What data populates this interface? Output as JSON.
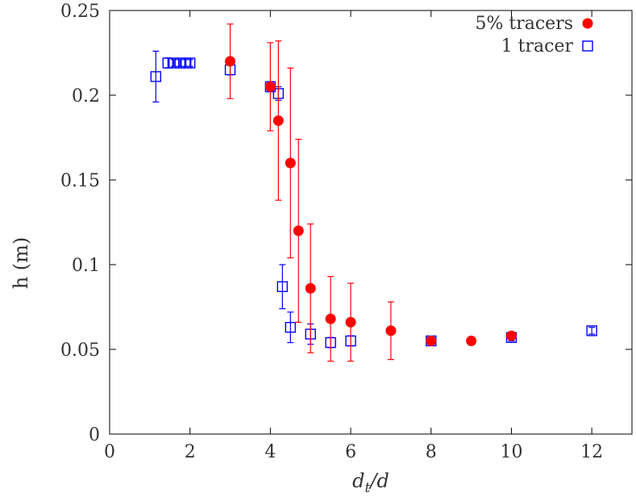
{
  "chart_data": {
    "type": "scatter",
    "xlabel": "d_t/d",
    "ylabel": "h (m)",
    "xlim": [
      0,
      13
    ],
    "ylim": [
      0,
      0.25
    ],
    "x_ticks": [
      0,
      2,
      4,
      6,
      8,
      10,
      12
    ],
    "y_ticks": [
      0,
      0.05,
      0.1,
      0.15,
      0.2,
      0.25
    ],
    "x_tick_labels": [
      "0",
      "2",
      "4",
      "6",
      "8",
      "10",
      "12"
    ],
    "y_tick_labels": [
      "0",
      "0.05",
      "0.1",
      "0.15",
      "0.2",
      "0.25"
    ],
    "grid": false,
    "legend_position": "top-right",
    "series": [
      {
        "name": "5% tracers",
        "marker": "filled-circle",
        "color": "#ff0000",
        "points": [
          {
            "x": 3.0,
            "y": 0.22,
            "err": 0.022
          },
          {
            "x": 4.0,
            "y": 0.205,
            "err": 0.026
          },
          {
            "x": 4.2,
            "y": 0.185,
            "err": 0.047
          },
          {
            "x": 4.5,
            "y": 0.16,
            "err": 0.056
          },
          {
            "x": 4.7,
            "y": 0.12,
            "err": 0.054
          },
          {
            "x": 5.0,
            "y": 0.086,
            "err": 0.038
          },
          {
            "x": 5.5,
            "y": 0.068,
            "err": 0.025
          },
          {
            "x": 6.0,
            "y": 0.066,
            "err": 0.023
          },
          {
            "x": 7.0,
            "y": 0.061,
            "err": 0.017
          },
          {
            "x": 8.0,
            "y": 0.055,
            "err": 0.002
          },
          {
            "x": 9.0,
            "y": 0.055,
            "err": 0.0
          },
          {
            "x": 10.0,
            "y": 0.058,
            "err": 0.002
          }
        ]
      },
      {
        "name": "1 tracer",
        "marker": "open-square",
        "color": "#0000ff",
        "points": [
          {
            "x": 1.15,
            "y": 0.211,
            "err": 0.015
          },
          {
            "x": 1.45,
            "y": 0.219,
            "err": 0.003
          },
          {
            "x": 1.6,
            "y": 0.219,
            "err": 0.002
          },
          {
            "x": 1.75,
            "y": 0.219,
            "err": 0.002
          },
          {
            "x": 1.9,
            "y": 0.219,
            "err": 0.002
          },
          {
            "x": 2.0,
            "y": 0.219,
            "err": 0.002
          },
          {
            "x": 3.0,
            "y": 0.215,
            "err": 0.003
          },
          {
            "x": 4.0,
            "y": 0.205,
            "err": 0.003
          },
          {
            "x": 4.2,
            "y": 0.201,
            "err": 0.004
          },
          {
            "x": 4.3,
            "y": 0.087,
            "err": 0.013
          },
          {
            "x": 4.5,
            "y": 0.063,
            "err": 0.009
          },
          {
            "x": 5.0,
            "y": 0.059,
            "err": 0.006
          },
          {
            "x": 5.5,
            "y": 0.054,
            "err": 0.003
          },
          {
            "x": 6.0,
            "y": 0.055,
            "err": 0.003
          },
          {
            "x": 8.0,
            "y": 0.055,
            "err": 0.002
          },
          {
            "x": 10.0,
            "y": 0.057,
            "err": 0.002
          },
          {
            "x": 12.0,
            "y": 0.061,
            "err": 0.002
          }
        ]
      }
    ]
  }
}
